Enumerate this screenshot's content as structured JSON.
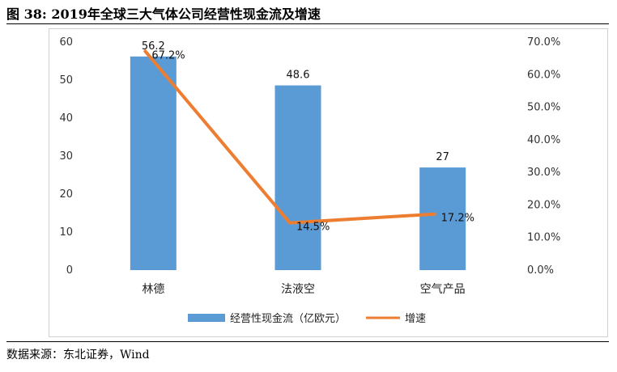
{
  "figure": {
    "title": "图 38: 2019年全球三大气体公司经营性现金流及增速",
    "source": "数据来源：东北证券，Wind"
  },
  "colors": {
    "bar": "#5b9bd5",
    "line": "#ed7d31"
  },
  "chart_data": {
    "type": "bar",
    "categories": [
      "林德",
      "法液空",
      "空气产品"
    ],
    "series": [
      {
        "name": "经营性现金流（亿欧元）",
        "type": "bar",
        "axis": "left",
        "values": [
          56.2,
          48.6,
          27
        ],
        "labels": [
          "56.2",
          "48.6",
          "27"
        ]
      },
      {
        "name": "增速",
        "type": "line",
        "axis": "right",
        "values": [
          67.2,
          14.5,
          17.2
        ],
        "labels": [
          "67.2%",
          "14.5%",
          "17.2%"
        ]
      }
    ],
    "y_left": {
      "ylim": [
        0,
        60
      ],
      "ticks": [
        "0",
        "10",
        "20",
        "30",
        "40",
        "50",
        "60"
      ]
    },
    "y_right": {
      "ylim": [
        0,
        70
      ],
      "ticks": [
        "0.0%",
        "10.0%",
        "20.0%",
        "30.0%",
        "40.0%",
        "50.0%",
        "60.0%",
        "70.0%"
      ]
    },
    "legend": "bottom",
    "grid": false
  }
}
